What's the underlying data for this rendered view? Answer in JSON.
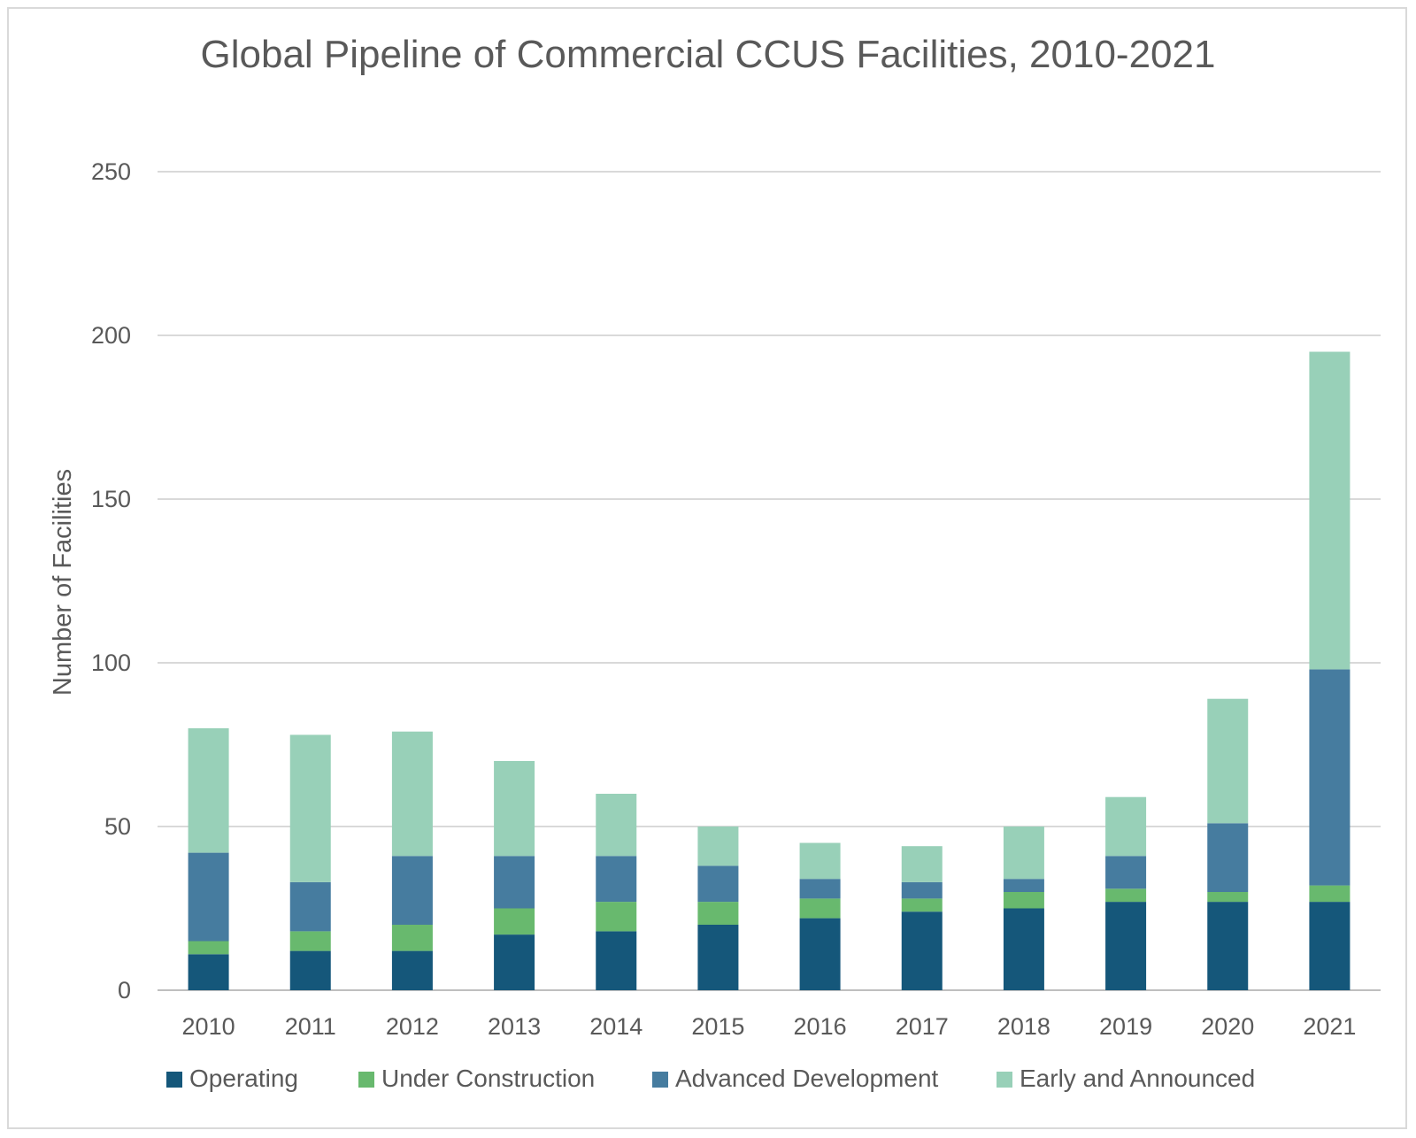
{
  "chart_data": {
    "type": "bar",
    "stacked": true,
    "title": "Global Pipeline of Commercial CCUS Facilities, 2010-2021",
    "xlabel": "",
    "ylabel": "Number of Facilities",
    "ylim": [
      0,
      250
    ],
    "yticks": [
      0,
      50,
      100,
      150,
      200,
      250
    ],
    "grid": true,
    "legend_position": "bottom",
    "categories": [
      "2010",
      "2011",
      "2012",
      "2013",
      "2014",
      "2015",
      "2016",
      "2017",
      "2018",
      "2019",
      "2020",
      "2021"
    ],
    "series": [
      {
        "name": "Operating",
        "color": "#15577a",
        "values": [
          11,
          12,
          12,
          17,
          18,
          20,
          22,
          24,
          25,
          27,
          27,
          27
        ]
      },
      {
        "name": "Under Construction",
        "color": "#68b96e",
        "values": [
          4,
          6,
          8,
          8,
          9,
          7,
          6,
          4,
          5,
          4,
          3,
          5
        ]
      },
      {
        "name": "Advanced Development",
        "color": "#467c9f",
        "values": [
          27,
          15,
          21,
          16,
          14,
          11,
          6,
          5,
          4,
          10,
          21,
          66
        ]
      },
      {
        "name": "Early and Announced",
        "color": "#98d0b8",
        "values": [
          38,
          45,
          38,
          29,
          19,
          12,
          11,
          11,
          16,
          18,
          38,
          97
        ]
      }
    ]
  }
}
